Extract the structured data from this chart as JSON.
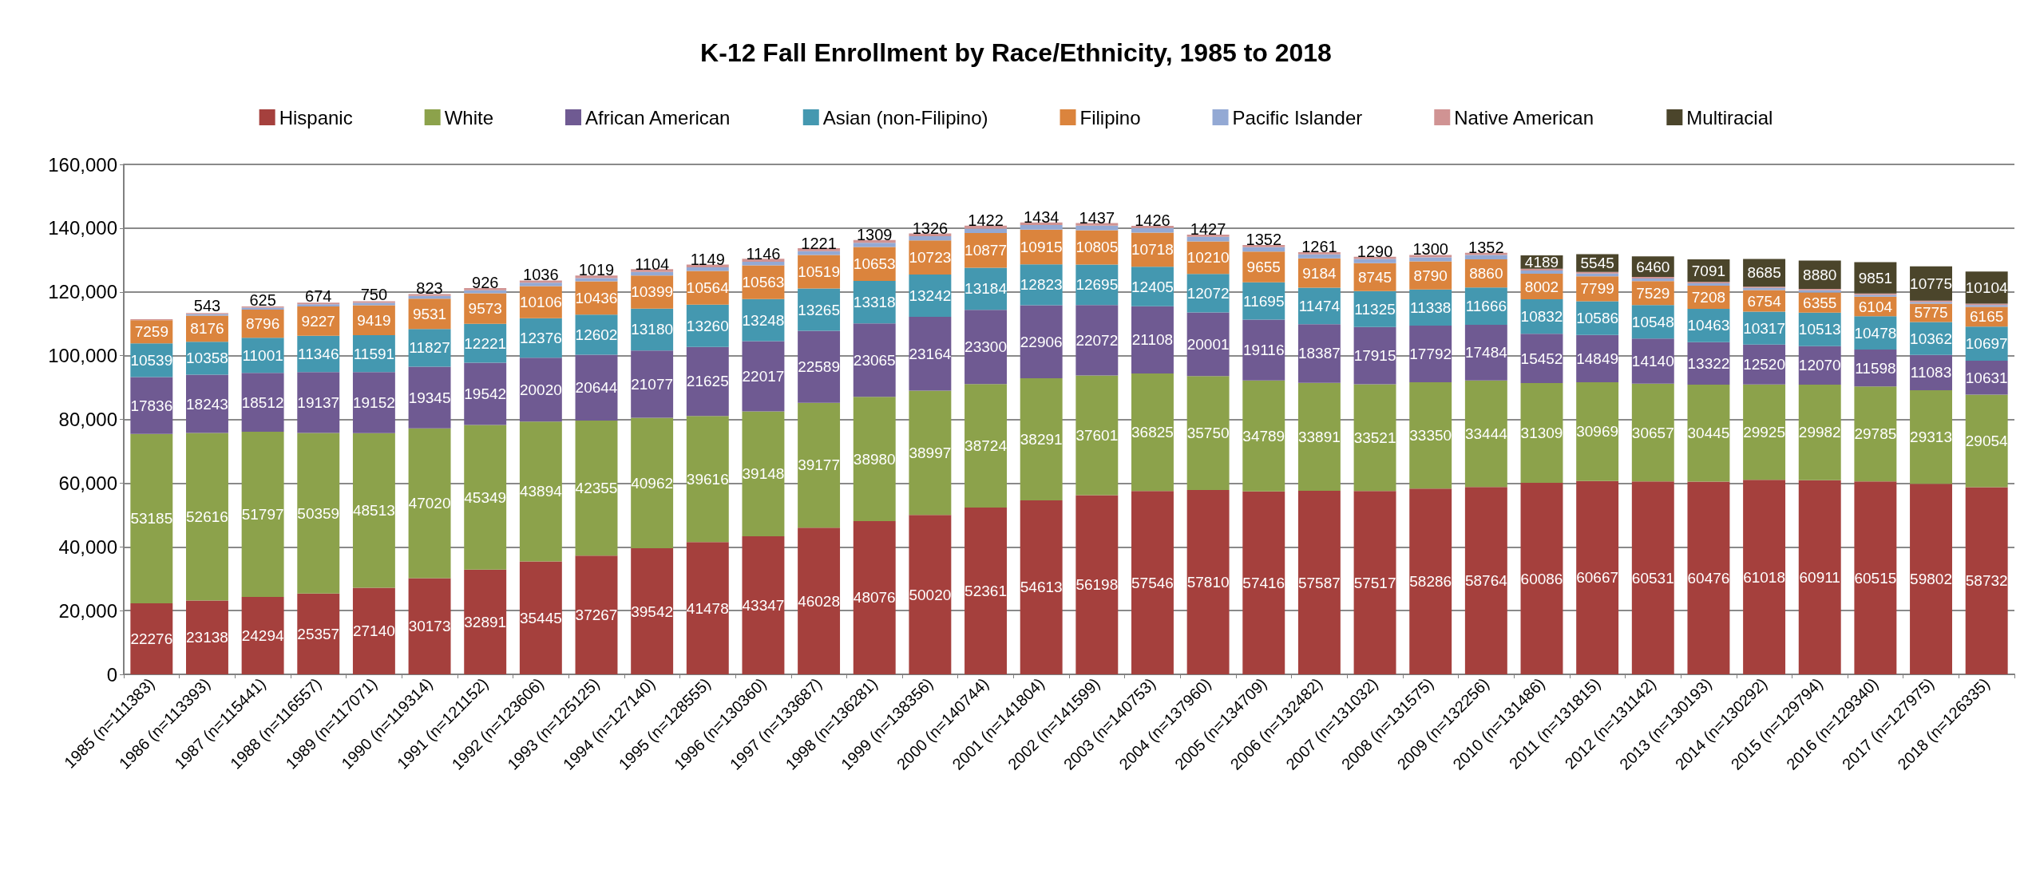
{
  "chart_data": {
    "type": "bar",
    "stacked": true,
    "title": "K-12 Fall Enrollment by Race/Ethnicity, 1985 to 2018",
    "categories": [
      "1985 (n=111383)",
      "1986 (n=113393)",
      "1987 (n=115441)",
      "1988 (n=116557)",
      "1989 (n=117071)",
      "1990 (n=119314)",
      "1991 (n=121152)",
      "1992 (n=123606)",
      "1993 (n=125125)",
      "1994 (n=127140)",
      "1995 (n=128555)",
      "1996 (n=130360)",
      "1997 (n=133687)",
      "1998 (n=136281)",
      "1999 (n=138356)",
      "2000 (n=140744)",
      "2001 (n=141804)",
      "2002 (n=141599)",
      "2003 (n=140753)",
      "2004 (n=137960)",
      "2005 (n=134709)",
      "2006 (n=132482)",
      "2007 (n=131032)",
      "2008 (n=131575)",
      "2009 (n=132256)",
      "2010 (n=131486)",
      "2011 (n=131815)",
      "2012 (n=131142)",
      "2013 (n=130193)",
      "2014 (n=130292)",
      "2015 (n=129794)",
      "2016 (n=129340)",
      "2017 (n=127975)",
      "2018 (n=126335)"
    ],
    "series": [
      {
        "name": "Hispanic",
        "color": "#a5403d",
        "data_labels": true,
        "values": [
          22276,
          23138,
          24294,
          25357,
          27140,
          30173,
          32891,
          35445,
          37267,
          39542,
          41478,
          43347,
          46028,
          48076,
          50020,
          52361,
          54613,
          56198,
          57546,
          57810,
          57416,
          57587,
          57517,
          58286,
          58764,
          60086,
          60667,
          60531,
          60476,
          61018,
          60911,
          60515,
          59802,
          58732
        ]
      },
      {
        "name": "White",
        "color": "#8ca24b",
        "data_labels": true,
        "values": [
          53185,
          52616,
          51797,
          50359,
          48513,
          47020,
          45349,
          43894,
          42355,
          40962,
          39616,
          39148,
          39177,
          38980,
          38997,
          38724,
          38291,
          37601,
          36825,
          35750,
          34789,
          33891,
          33521,
          33350,
          33444,
          31309,
          30969,
          30657,
          30445,
          29925,
          29982,
          29785,
          29313,
          29054
        ]
      },
      {
        "name": "African American",
        "color": "#6f5a92",
        "data_labels": true,
        "values": [
          17836,
          18243,
          18512,
          19137,
          19152,
          19345,
          19542,
          20020,
          20644,
          21077,
          21625,
          22017,
          22589,
          23065,
          23164,
          23300,
          22906,
          22072,
          21108,
          20001,
          19116,
          18387,
          17915,
          17792,
          17484,
          15452,
          14849,
          14140,
          13322,
          12520,
          12070,
          11598,
          11083,
          10631
        ]
      },
      {
        "name": "Asian (non-Filipino)",
        "color": "#4498b0",
        "data_labels": true,
        "values": [
          10539,
          10358,
          11001,
          11346,
          11591,
          11827,
          12221,
          12376,
          12602,
          13180,
          13260,
          13248,
          13265,
          13318,
          13242,
          13184,
          12823,
          12695,
          12405,
          12072,
          11695,
          11474,
          11325,
          11338,
          11666,
          10832,
          10586,
          10548,
          10463,
          10317,
          10513,
          10478,
          10362,
          10697
        ]
      },
      {
        "name": "Filipino",
        "color": "#db843d",
        "data_labels": true,
        "values": [
          7259,
          8176,
          8796,
          9227,
          9419,
          9531,
          9573,
          10106,
          10436,
          10399,
          10564,
          10563,
          10519,
          10653,
          10723,
          10877,
          10915,
          10805,
          10718,
          10210,
          9655,
          9184,
          8745,
          8790,
          8860,
          8002,
          7799,
          7529,
          7208,
          6754,
          6355,
          6104,
          5775,
          6165
        ]
      },
      {
        "name": "Pacific Islander",
        "color": "#93a9d4",
        "values": [
          null,
          543,
          625,
          674,
          750,
          823,
          926,
          1036,
          1019,
          1104,
          1149,
          1146,
          1221,
          1309,
          1326,
          1422,
          1434,
          1437,
          1426,
          1427,
          1352,
          1261,
          1290,
          1300,
          1352,
          1000,
          900,
          800,
          800,
          700,
          700,
          600,
          500,
          600
        ],
        "value_labels": [
          null,
          "543",
          "625",
          "674",
          "750",
          "823",
          "926",
          "1036",
          "1019",
          "1104",
          "1149",
          "1146",
          "1221",
          "1309",
          "1326",
          "1422",
          "1434",
          "1437",
          "1426",
          "1427",
          "1352",
          "1261",
          "1290",
          "1300",
          "1352",
          null,
          null,
          null,
          null,
          null,
          null,
          null,
          null,
          null
        ]
      },
      {
        "name": "Native American",
        "color": "#d09393",
        "values": [
          300,
          300,
          400,
          500,
          500,
          600,
          700,
          700,
          800,
          900,
          900,
          900,
          900,
          900,
          900,
          900,
          800,
          800,
          700,
          700,
          700,
          700,
          700,
          700,
          700,
          600,
          500,
          500,
          400,
          400,
          400,
          400,
          400,
          400
        ]
      },
      {
        "name": "Multiracial",
        "color": "#4b452b",
        "data_labels": true,
        "values": [
          null,
          null,
          null,
          null,
          null,
          null,
          null,
          null,
          null,
          null,
          null,
          null,
          null,
          null,
          null,
          null,
          null,
          null,
          null,
          null,
          null,
          null,
          null,
          null,
          null,
          4189,
          5545,
          6460,
          7091,
          8685,
          8880,
          9851,
          10775,
          10104
        ]
      }
    ],
    "ylim": [
      0,
      160000
    ],
    "yticks": [
      {
        "value": 0,
        "label": "0"
      },
      {
        "value": 20000,
        "label": "20,000"
      },
      {
        "value": 40000,
        "label": "40,000"
      },
      {
        "value": 60000,
        "label": "60,000"
      },
      {
        "value": 80000,
        "label": "80,000"
      },
      {
        "value": 100000,
        "label": "100,000"
      },
      {
        "value": 120000,
        "label": "120,000"
      },
      {
        "value": 140000,
        "label": "140,000"
      },
      {
        "value": 160000,
        "label": "160,000"
      }
    ],
    "grid": "y",
    "legend": "top"
  }
}
